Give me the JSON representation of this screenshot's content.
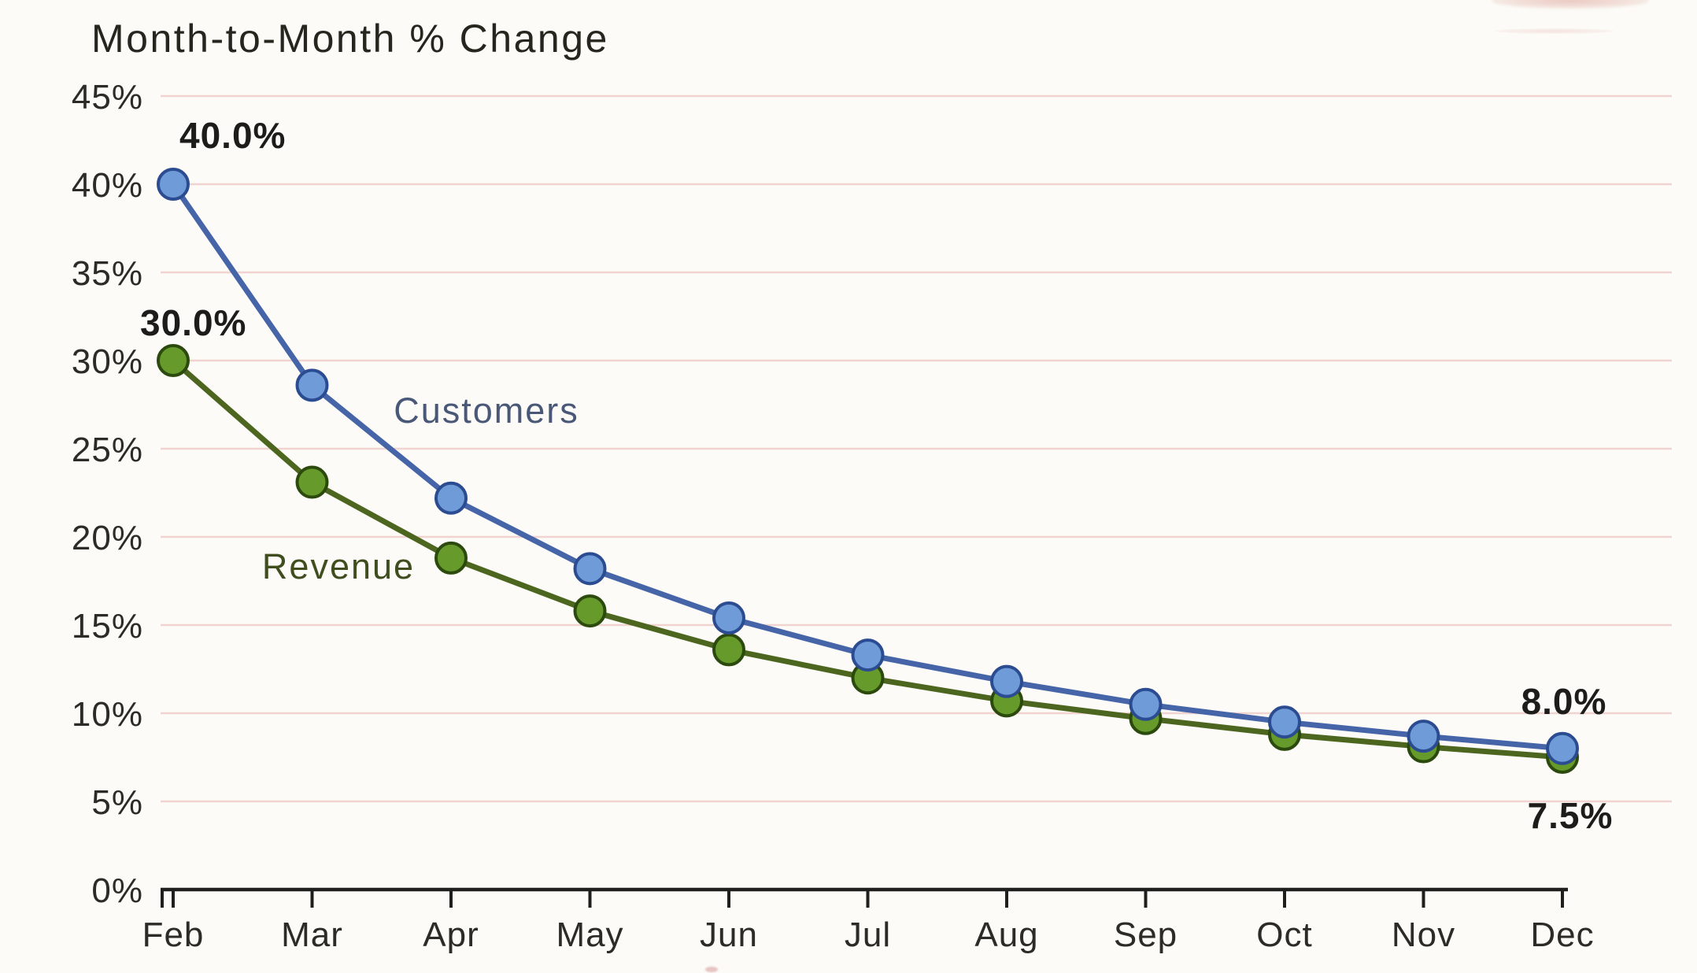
{
  "chart_data": {
    "type": "line",
    "title": "Month-to-Month % Change",
    "x": [
      "Feb",
      "Mar",
      "Apr",
      "May",
      "Jun",
      "Jul",
      "Aug",
      "Sep",
      "Oct",
      "Nov",
      "Dec"
    ],
    "xlabel": "",
    "ylabel": "",
    "ylim": [
      0,
      45
    ],
    "y_ticks": [
      {
        "label": "45%",
        "value": 45
      },
      {
        "label": "40%",
        "value": 40
      },
      {
        "label": "35%",
        "value": 35
      },
      {
        "label": "30%",
        "value": 30
      },
      {
        "label": "25%",
        "value": 25
      },
      {
        "label": "20%",
        "value": 20
      },
      {
        "label": "15%",
        "value": 15
      },
      {
        "label": "10%",
        "value": 10
      },
      {
        "label": "5%",
        "value": 5
      },
      {
        "label": "0%",
        "value": 0
      }
    ],
    "grid": "horizontal gridlines at every 5%, faint pink",
    "legend_position": "inline labels beside each line",
    "series": [
      {
        "name": "Revenue",
        "values": [
          30.0,
          23.1,
          18.8,
          15.8,
          13.6,
          12.0,
          10.7,
          9.7,
          8.8,
          8.1,
          7.5
        ],
        "line_color": "#4c661f",
        "marker_color": "#669b2b",
        "marker_edge_color": "#2c4a0e",
        "label_color": "#3f4d1f"
      },
      {
        "name": "Customers",
        "values": [
          40.0,
          28.6,
          22.2,
          18.2,
          15.4,
          13.3,
          11.8,
          10.5,
          9.5,
          8.7,
          8.0
        ],
        "line_color": "#4565a8",
        "marker_color": "#6f9bd8",
        "marker_edge_color": "#2c4c91",
        "label_color": "#4a5878"
      }
    ],
    "annotations": [
      {
        "series": "Customers",
        "x": "Feb",
        "text": "40.0%",
        "position": "above-right"
      },
      {
        "series": "Revenue",
        "x": "Feb",
        "text": "30.0%",
        "position": "above-left"
      },
      {
        "series": "Customers",
        "x": "Dec",
        "text": "8.0%",
        "position": "above"
      },
      {
        "series": "Revenue",
        "x": "Dec",
        "text": "7.5%",
        "position": "below"
      }
    ],
    "colors": {
      "axis": "#1f1f1d",
      "tick_text": "#2b2b28",
      "annotation_text": "#1c1c1a",
      "gridline": "#f0cdc9",
      "paper": "#fcfbf7"
    }
  }
}
